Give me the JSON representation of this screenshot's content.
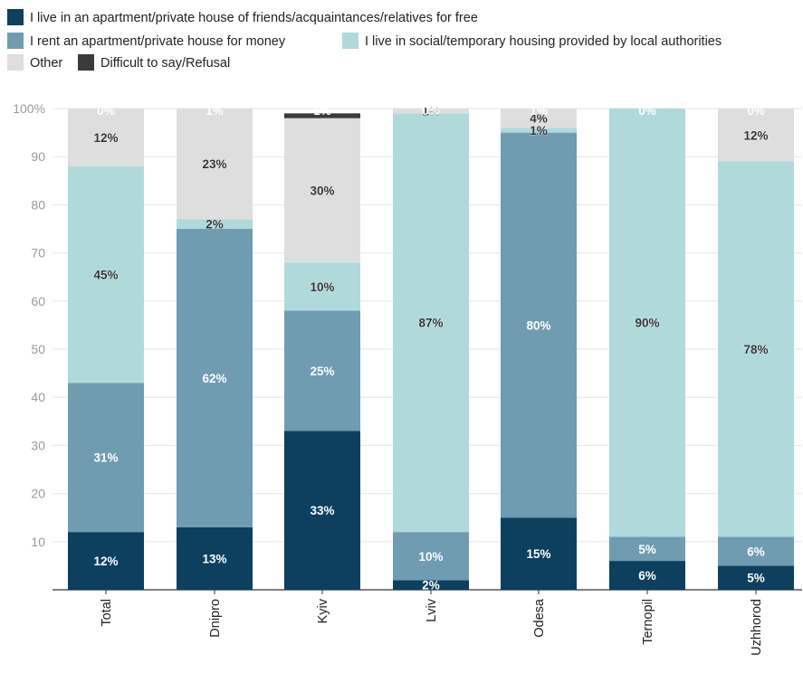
{
  "chart_data": {
    "type": "bar",
    "stacked": true,
    "categories": [
      "Total",
      "Dnipro",
      "Kyiv",
      "Lviv",
      "Odesa",
      "Ternopil",
      "Uzhhorod"
    ],
    "series": [
      {
        "name": "I live in an apartment/private house of friends/acquaintances/relatives for free",
        "color": "#0d3f5e",
        "values": [
          12,
          13,
          33,
          2,
          15,
          6,
          5
        ],
        "labels": [
          "12%",
          "13%",
          "33%",
          "2%",
          "15%",
          "6%",
          "5%"
        ]
      },
      {
        "name": "I rent an apartment/private house for money",
        "color": "#6f9cb1",
        "values": [
          31,
          62,
          25,
          10,
          80,
          5,
          6
        ],
        "labels": [
          "31%",
          "62%",
          "25%",
          "10%",
          "80%",
          "5%",
          "6%"
        ]
      },
      {
        "name": "I live in social/temporary housing provided by local authorities",
        "color": "#b0d9dc",
        "values": [
          45,
          2,
          10,
          87,
          1,
          90,
          78
        ],
        "labels": [
          "45%",
          "2%",
          "10%",
          "87%",
          "1%",
          "90%",
          "78%"
        ]
      },
      {
        "name": "Other",
        "color": "#dedede",
        "values": [
          12,
          23,
          30,
          1,
          4,
          0,
          12
        ],
        "labels": [
          "12%",
          "23%",
          "30%",
          "1%",
          "4%",
          "",
          "12%"
        ]
      },
      {
        "name": "Difficult to say/Refusal",
        "color": "#3b3b3b",
        "values": [
          0,
          1,
          1,
          0,
          1,
          0,
          0
        ],
        "labels": [
          "0%",
          "1%",
          "1%",
          "0%",
          "1%",
          "0%",
          "0%"
        ]
      }
    ],
    "ylim": [
      0,
      100
    ],
    "yticks": [
      10,
      20,
      30,
      40,
      50,
      60,
      70,
      80,
      90,
      100
    ],
    "ytick_labels": [
      "10",
      "20",
      "30",
      "40",
      "50",
      "60",
      "70",
      "80",
      "90",
      "100%"
    ],
    "grid": true,
    "legend_position": "top-left",
    "xlabel": "",
    "ylabel": ""
  }
}
